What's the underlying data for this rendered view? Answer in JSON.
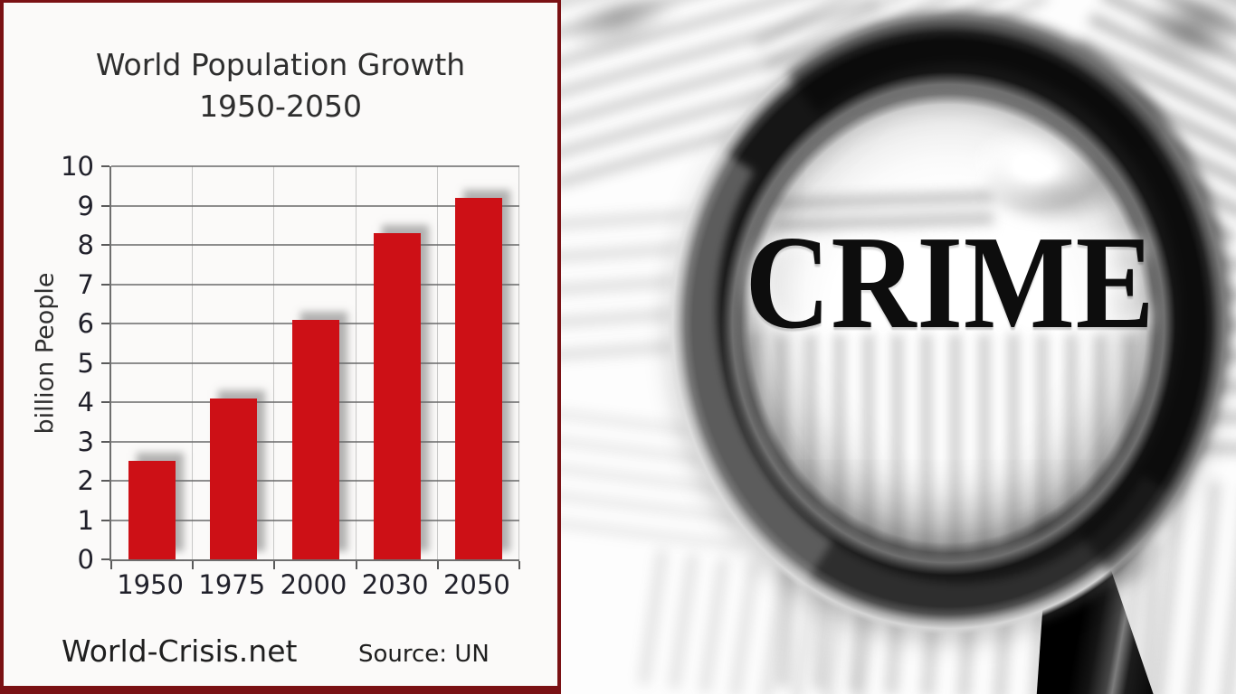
{
  "left_panel": {
    "title_line1": "World Population Growth",
    "title_line2": "1950-2050",
    "y_axis_label": "billion People",
    "brand": "World-Crisis.net",
    "source": "Source: UN",
    "bar_color": "#cd1016",
    "border_color": "#7a1114"
  },
  "chart_data": {
    "type": "bar",
    "title": "World Population Growth 1950-2050",
    "categories": [
      "1950",
      "1975",
      "2000",
      "2030",
      "2050"
    ],
    "values": [
      2.5,
      4.1,
      6.1,
      8.3,
      9.2
    ],
    "xlabel": "",
    "ylabel": "billion People",
    "ylim": [
      0,
      10
    ],
    "ytick_step": 1,
    "grid": true,
    "legend": false,
    "bar_color": "#cd1016",
    "brand": "World-Crisis.net",
    "source": "Source: UN"
  },
  "right_panel": {
    "headline": "CRIME"
  }
}
